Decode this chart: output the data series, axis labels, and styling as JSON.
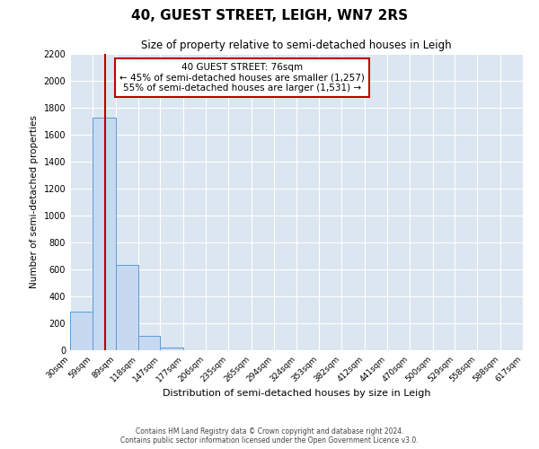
{
  "title": "40, GUEST STREET, LEIGH, WN7 2RS",
  "subtitle": "Size of property relative to semi-detached houses in Leigh",
  "xlabel": "Distribution of semi-detached houses by size in Leigh",
  "ylabel": "Number of semi-detached properties",
  "bar_color": "#c6d9f1",
  "bar_edge_color": "#5b9bd5",
  "background_color": "#dce6f1",
  "grid_color": "#ffffff",
  "property_line_x": 76,
  "property_line_color": "#c00000",
  "annotation_title": "40 GUEST STREET: 76sqm",
  "annotation_line1": "← 45% of semi-detached houses are smaller (1,257)",
  "annotation_line2": "55% of semi-detached houses are larger (1,531) →",
  "annotation_box_color": "#ffffff",
  "annotation_box_edge": "#c00000",
  "bin_edges": [
    30,
    59,
    89,
    118,
    147,
    177,
    206,
    235,
    265,
    294,
    324,
    353,
    382,
    412,
    441,
    470,
    500,
    529,
    558,
    588,
    617
  ],
  "bin_labels": [
    "30sqm",
    "59sqm",
    "89sqm",
    "118sqm",
    "147sqm",
    "177sqm",
    "206sqm",
    "235sqm",
    "265sqm",
    "294sqm",
    "324sqm",
    "353sqm",
    "382sqm",
    "412sqm",
    "441sqm",
    "470sqm",
    "500sqm",
    "529sqm",
    "558sqm",
    "588sqm",
    "617sqm"
  ],
  "bin_counts": [
    290,
    1730,
    635,
    110,
    22,
    1,
    0,
    0,
    0,
    0,
    0,
    0,
    0,
    0,
    0,
    0,
    0,
    0,
    0,
    0
  ],
  "ylim": [
    0,
    2200
  ],
  "yticks": [
    0,
    200,
    400,
    600,
    800,
    1000,
    1200,
    1400,
    1600,
    1800,
    2000,
    2200
  ],
  "footer_line1": "Contains HM Land Registry data © Crown copyright and database right 2024.",
  "footer_line2": "Contains public sector information licensed under the Open Government Licence v3.0."
}
